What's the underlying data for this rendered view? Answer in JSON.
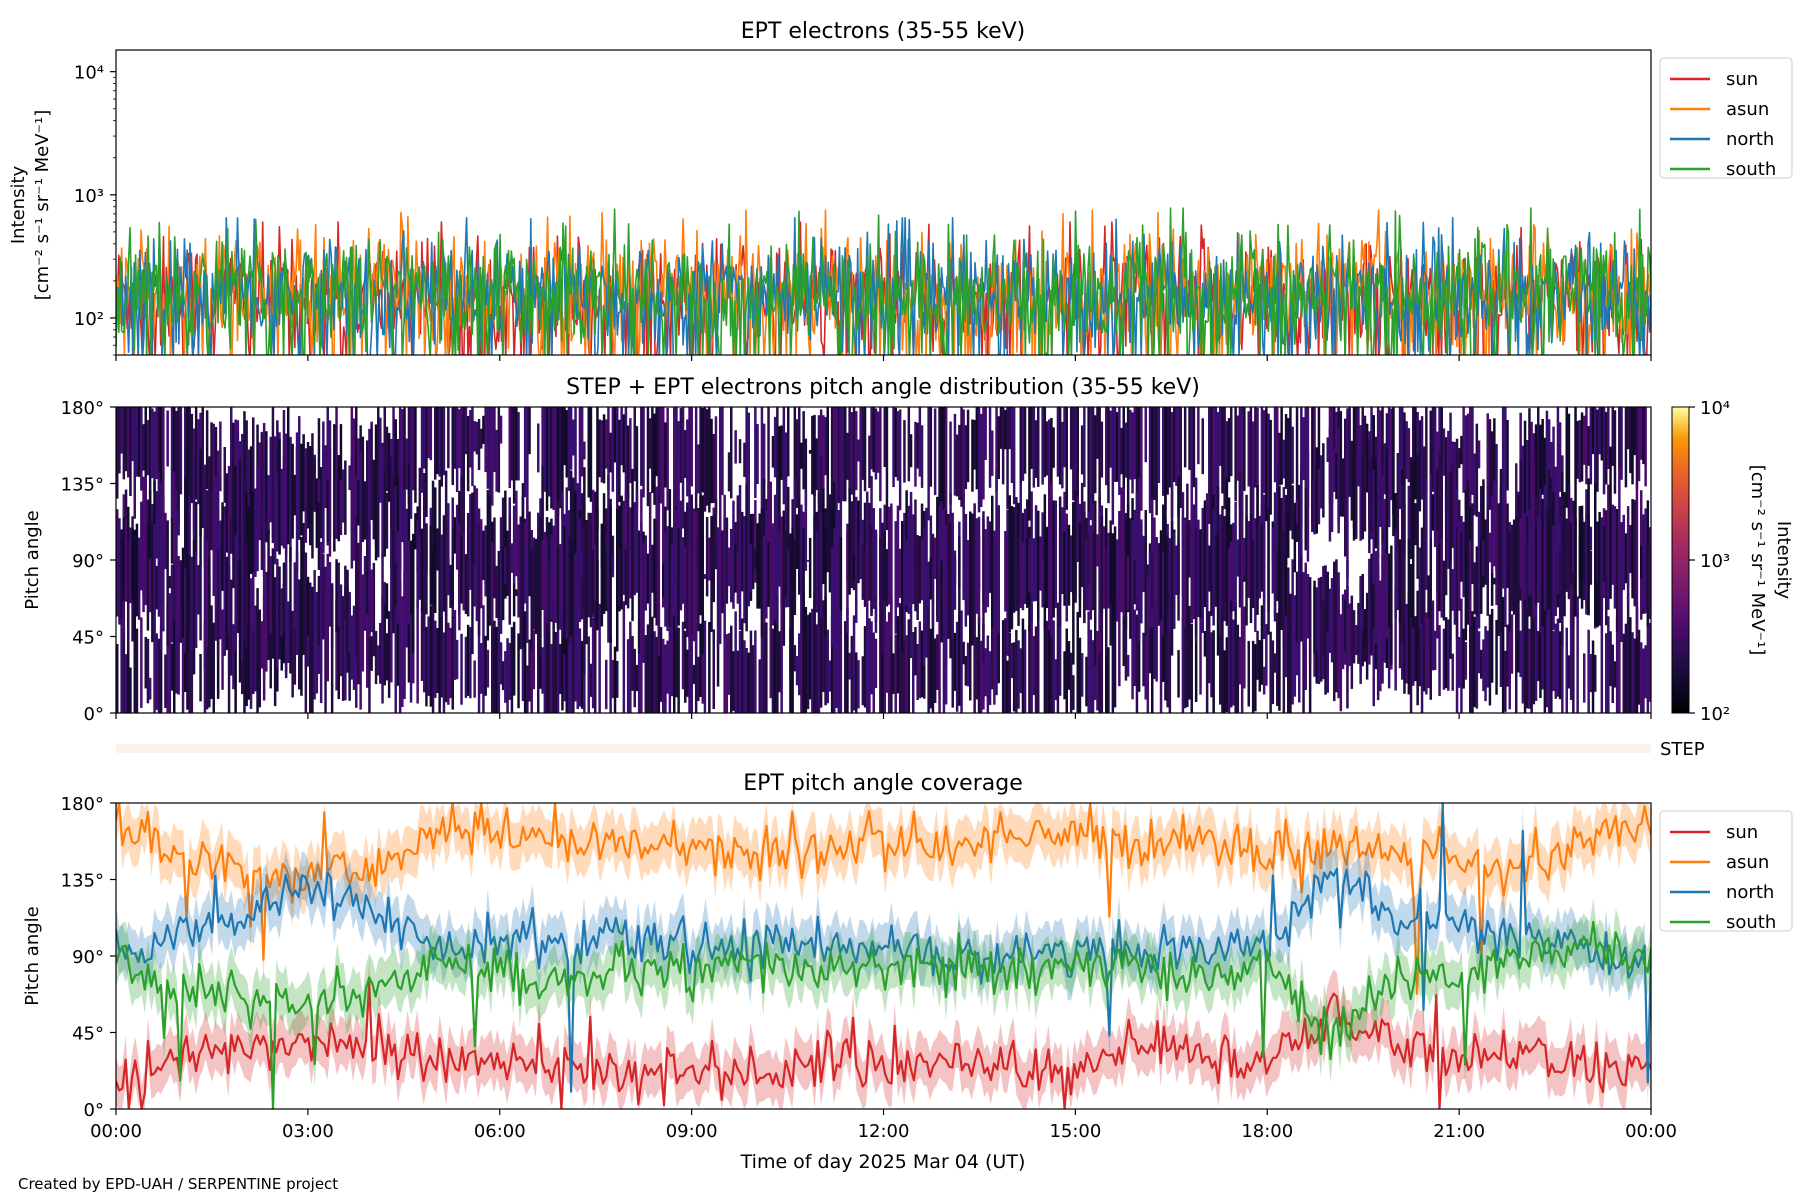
{
  "credit": "Created by EPD-UAH / SERPENTINE project",
  "colors": {
    "sun": "#d62728",
    "asun": "#ff7f0e",
    "north": "#1f77b4",
    "south": "#2ca02c",
    "step_bar": "#fdf0ea"
  },
  "chart_data": [
    {
      "type": "line",
      "title": "EPT electrons (35-55 keV)",
      "ylabel": "Intensity",
      "ylabel_units": "[cm⁻² s⁻¹ sr⁻¹ MeV⁻¹]",
      "yscale": "log",
      "ylim": [
        50,
        15000
      ],
      "yticks": [
        {
          "value": 100,
          "label": "10²"
        },
        {
          "value": 1000,
          "label": "10³"
        },
        {
          "value": 10000,
          "label": "10⁴"
        }
      ],
      "xlim_hours": [
        0,
        24
      ],
      "legend": "outside-right",
      "legend_entries": [
        "sun",
        "asun",
        "north",
        "south"
      ],
      "series": [
        {
          "name": "sun",
          "approx_median": 150,
          "approx_range": [
            50,
            600
          ]
        },
        {
          "name": "asun",
          "approx_median": 170,
          "approx_range": [
            50,
            750
          ]
        },
        {
          "name": "north",
          "approx_median": 160,
          "approx_range": [
            50,
            650
          ]
        },
        {
          "name": "south",
          "approx_median": 165,
          "approx_range": [
            50,
            780
          ]
        }
      ]
    },
    {
      "type": "heatmap",
      "title": "STEP + EPT electrons pitch angle distribution (35-55 keV)",
      "ylabel": "Pitch angle",
      "ylim": [
        0,
        180
      ],
      "yticks": [
        "0°",
        "45°",
        "90°",
        "135°",
        "180°"
      ],
      "xlim_hours": [
        0,
        24
      ],
      "colorbar": {
        "label": "Intensity",
        "units": "[cm⁻² s⁻¹ sr⁻¹ MeV⁻¹]",
        "scale": "log",
        "range": [
          100,
          10000
        ],
        "ticks": [
          "10²",
          "10³",
          "10⁴"
        ],
        "colormap": "inferno"
      },
      "step_label": "STEP"
    },
    {
      "type": "line",
      "title": "EPT pitch angle coverage",
      "ylabel": "Pitch angle",
      "ylim": [
        0,
        180
      ],
      "yticks": [
        "0°",
        "45°",
        "90°",
        "135°",
        "180°"
      ],
      "xlim_hours": [
        0,
        24
      ],
      "xticks": [
        "00:00",
        "03:00",
        "06:00",
        "09:00",
        "12:00",
        "15:00",
        "18:00",
        "21:00",
        "00:00"
      ],
      "xlabel": "Time of day 2025 Mar 04 (UT)",
      "legend": "outside-right",
      "legend_entries": [
        "sun",
        "asun",
        "north",
        "south"
      ],
      "series": [
        {
          "name": "sun",
          "x_hours": [
            0,
            1,
            2,
            3,
            4,
            5,
            6,
            7,
            8,
            9,
            10,
            11,
            12,
            13,
            14,
            15,
            16,
            17,
            18,
            19,
            20,
            21,
            22,
            23,
            24
          ],
          "values": [
            15,
            30,
            35,
            40,
            38,
            30,
            25,
            25,
            20,
            25,
            20,
            30,
            25,
            30,
            25,
            20,
            40,
            30,
            25,
            55,
            40,
            30,
            35,
            25,
            20
          ]
        },
        {
          "name": "asun",
          "x_hours": [
            0,
            1,
            2,
            3,
            4,
            5,
            6,
            7,
            8,
            9,
            10,
            11,
            12,
            13,
            14,
            15,
            16,
            17,
            18,
            19,
            20,
            21,
            22,
            23,
            24
          ],
          "values": [
            165,
            150,
            140,
            135,
            140,
            165,
            160,
            160,
            155,
            155,
            150,
            150,
            160,
            150,
            165,
            160,
            155,
            160,
            150,
            155,
            150,
            150,
            135,
            160,
            170
          ]
        },
        {
          "name": "north",
          "x_hours": [
            0,
            1,
            2,
            3,
            4,
            5,
            6,
            7,
            8,
            9,
            10,
            11,
            12,
            13,
            14,
            15,
            16,
            17,
            18,
            19,
            20,
            21,
            22,
            23,
            24
          ],
          "values": [
            90,
            108,
            112,
            130,
            120,
            95,
            100,
            95,
            100,
            95,
            95,
            100,
            95,
            90,
            90,
            95,
            90,
            95,
            95,
            140,
            110,
            110,
            100,
            90,
            90
          ]
        },
        {
          "name": "south",
          "x_hours": [
            0,
            1,
            2,
            3,
            4,
            5,
            6,
            7,
            8,
            9,
            10,
            11,
            12,
            13,
            14,
            15,
            16,
            17,
            18,
            19,
            20,
            21,
            22,
            23,
            24
          ],
          "values": [
            90,
            70,
            65,
            60,
            70,
            85,
            80,
            75,
            80,
            80,
            85,
            80,
            85,
            80,
            80,
            85,
            80,
            80,
            85,
            40,
            75,
            80,
            90,
            95,
            90
          ]
        }
      ]
    }
  ]
}
